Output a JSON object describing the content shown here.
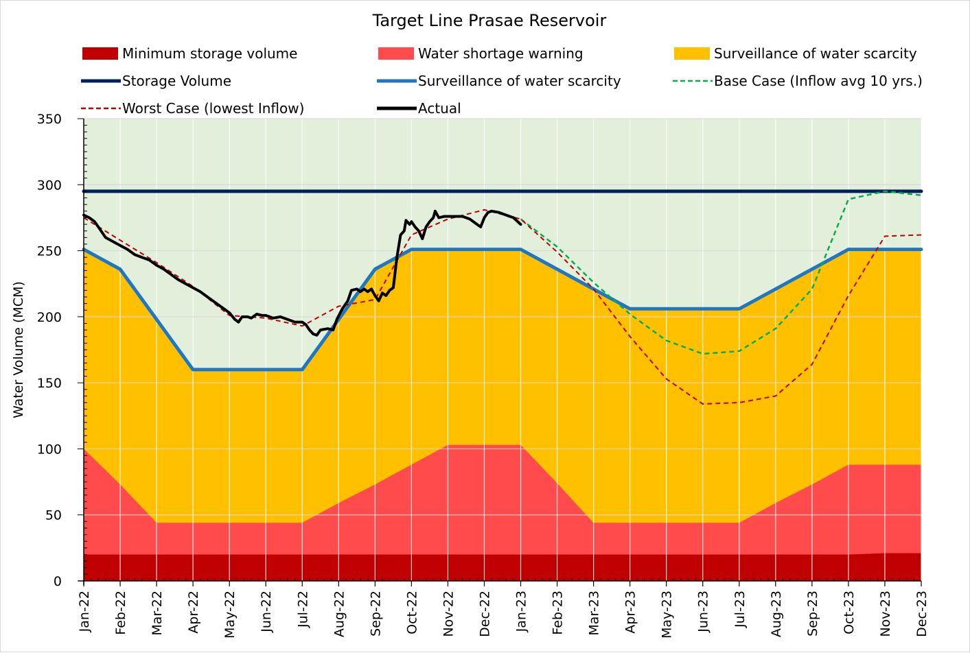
{
  "chart_data": {
    "type": "area",
    "title": "Target Line Prasae Reservoir",
    "xlabel": "",
    "ylabel": "Water Volume (MCM)",
    "ylim": [
      0,
      350
    ],
    "yticks": [
      0,
      50,
      100,
      150,
      200,
      250,
      300,
      350
    ],
    "categories": [
      "Jan-22",
      "Feb-22",
      "Mar-22",
      "Apr-22",
      "May-22",
      "Jun-22",
      "Jul-22",
      "Aug-22",
      "Sep-22",
      "Oct-22",
      "Nov-22",
      "Dec-22",
      "Jan-23",
      "Feb-23",
      "Mar-23",
      "Apr-23",
      "May-23",
      "Jun-23",
      "Jul-23",
      "Aug-23",
      "Sep-23",
      "Oct-23",
      "Nov-23",
      "Dec-23"
    ],
    "background_color": "#e2efda",
    "grid": true,
    "legend_position": "top",
    "areas": [
      {
        "name": "Surveillance of water scarcity",
        "color": "#ffc000",
        "values": [
          251,
          236,
          198,
          160,
          160,
          160,
          160,
          198,
          236,
          251,
          251,
          251,
          251,
          236,
          221,
          206,
          206,
          206,
          206,
          221,
          236,
          251,
          251,
          251
        ]
      },
      {
        "name": "Water shortage warning",
        "color": "#ff4b4b",
        "values": [
          100,
          73,
          44,
          44,
          44,
          44,
          44,
          59,
          73,
          88,
          103,
          103,
          103,
          74,
          44,
          44,
          44,
          44,
          44,
          59,
          73,
          88,
          88,
          88
        ]
      },
      {
        "name": "Minimum storage volume",
        "color": "#c00000",
        "values": [
          20,
          20,
          20,
          20,
          20,
          20,
          20,
          20,
          20,
          20,
          20,
          20,
          20,
          20,
          20,
          20,
          20,
          20,
          20,
          20,
          20,
          20,
          21,
          21
        ]
      }
    ],
    "lines": [
      {
        "name": "Storage Volume",
        "color": "#002060",
        "style": "solid",
        "width": 5,
        "points": [
          [
            0,
            295
          ],
          [
            23,
            295
          ]
        ]
      },
      {
        "name": "Surveillance of water scarcity",
        "color": "#1f77c4",
        "style": "solid",
        "width": 5,
        "points": [
          [
            0,
            251
          ],
          [
            1,
            236
          ],
          [
            2,
            198
          ],
          [
            3,
            160
          ],
          [
            4,
            160
          ],
          [
            5,
            160
          ],
          [
            6,
            160
          ],
          [
            7,
            198
          ],
          [
            8,
            236
          ],
          [
            9,
            251
          ],
          [
            10,
            251
          ],
          [
            11,
            251
          ],
          [
            12,
            251
          ],
          [
            13,
            236
          ],
          [
            14,
            221
          ],
          [
            15,
            206
          ],
          [
            16,
            206
          ],
          [
            17,
            206
          ],
          [
            18,
            206
          ],
          [
            19,
            221
          ],
          [
            20,
            236
          ],
          [
            21,
            251
          ],
          [
            22,
            251
          ],
          [
            23,
            251
          ]
        ]
      },
      {
        "name": "Base Case (Inflow avg 10 yrs.)",
        "color": "#00b050",
        "style": "dashed",
        "width": 2.5,
        "points": [
          [
            12,
            274
          ],
          [
            13,
            253
          ],
          [
            14,
            226
          ],
          [
            15,
            202
          ],
          [
            16,
            182
          ],
          [
            17,
            172
          ],
          [
            18,
            174
          ],
          [
            19,
            191
          ],
          [
            20,
            221
          ],
          [
            21,
            289
          ],
          [
            22,
            295
          ],
          [
            23,
            292
          ]
        ]
      },
      {
        "name": "Worst Case (lowest Inflow)",
        "color": "#c00000",
        "style": "dashed",
        "width": 2,
        "points": [
          [
            0,
            275
          ],
          [
            1,
            258
          ],
          [
            2,
            241
          ],
          [
            3,
            223
          ],
          [
            4,
            201
          ],
          [
            5,
            199
          ],
          [
            6,
            193
          ],
          [
            7,
            208
          ],
          [
            8,
            213
          ],
          [
            9,
            262
          ],
          [
            10,
            274
          ],
          [
            11,
            281
          ],
          [
            12,
            274
          ],
          [
            13,
            249
          ],
          [
            14,
            221
          ],
          [
            15,
            185
          ],
          [
            16,
            153
          ],
          [
            17,
            134
          ],
          [
            18,
            135
          ],
          [
            19,
            140
          ],
          [
            20,
            164
          ],
          [
            21,
            216
          ],
          [
            22,
            261
          ],
          [
            23,
            262
          ]
        ]
      },
      {
        "name": "Actual",
        "color": "#000000",
        "style": "solid",
        "width": 4,
        "points": [
          [
            0,
            277
          ],
          [
            0.15,
            275
          ],
          [
            0.3,
            272
          ],
          [
            0.45,
            266
          ],
          [
            0.6,
            260
          ],
          [
            0.8,
            257
          ],
          [
            1,
            254
          ],
          [
            1.2,
            251
          ],
          [
            1.4,
            247
          ],
          [
            1.6,
            245
          ],
          [
            1.8,
            243
          ],
          [
            2,
            239
          ],
          [
            2.2,
            236
          ],
          [
            2.4,
            232
          ],
          [
            2.6,
            228
          ],
          [
            2.8,
            225
          ],
          [
            3,
            222
          ],
          [
            3.2,
            219
          ],
          [
            3.4,
            215
          ],
          [
            3.6,
            211
          ],
          [
            3.8,
            207
          ],
          [
            4,
            203
          ],
          [
            4.15,
            198
          ],
          [
            4.25,
            196
          ],
          [
            4.35,
            200
          ],
          [
            4.5,
            200
          ],
          [
            4.6,
            199
          ],
          [
            4.75,
            202
          ],
          [
            4.9,
            201
          ],
          [
            5,
            201
          ],
          [
            5.2,
            199
          ],
          [
            5.4,
            200
          ],
          [
            5.6,
            198
          ],
          [
            5.8,
            196
          ],
          [
            6,
            196
          ],
          [
            6.1,
            194
          ],
          [
            6.2,
            190
          ],
          [
            6.3,
            187
          ],
          [
            6.4,
            186
          ],
          [
            6.5,
            190
          ],
          [
            6.7,
            191
          ],
          [
            6.85,
            190
          ],
          [
            6.95,
            198
          ],
          [
            7.1,
            206
          ],
          [
            7.25,
            212
          ],
          [
            7.35,
            220
          ],
          [
            7.5,
            221
          ],
          [
            7.6,
            219
          ],
          [
            7.7,
            221
          ],
          [
            7.8,
            219
          ],
          [
            7.9,
            221
          ],
          [
            8,
            216
          ],
          [
            8.1,
            212
          ],
          [
            8.2,
            218
          ],
          [
            8.3,
            216
          ],
          [
            8.4,
            220
          ],
          [
            8.5,
            222
          ],
          [
            8.6,
            245
          ],
          [
            8.7,
            262
          ],
          [
            8.8,
            265
          ],
          [
            8.85,
            273
          ],
          [
            8.95,
            270
          ],
          [
            9,
            272
          ],
          [
            9.1,
            268
          ],
          [
            9.2,
            265
          ],
          [
            9.3,
            259
          ],
          [
            9.4,
            268
          ],
          [
            9.5,
            272
          ],
          [
            9.6,
            275
          ],
          [
            9.65,
            280
          ],
          [
            9.75,
            275
          ],
          [
            9.9,
            276
          ],
          [
            10,
            276
          ],
          [
            10.2,
            276
          ],
          [
            10.4,
            276
          ],
          [
            10.6,
            274
          ],
          [
            10.8,
            270
          ],
          [
            10.9,
            268
          ],
          [
            11,
            275
          ],
          [
            11.1,
            279
          ],
          [
            11.2,
            280
          ],
          [
            11.4,
            279
          ],
          [
            11.6,
            277
          ],
          [
            11.8,
            275
          ],
          [
            12,
            270
          ]
        ]
      }
    ],
    "legend": [
      {
        "label": "Minimum storage volume",
        "kind": "area",
        "color": "#c00000"
      },
      {
        "label": "Water shortage warning",
        "kind": "area",
        "color": "#ff4b4b"
      },
      {
        "label": "Surveillance of water scarcity",
        "kind": "area",
        "color": "#ffc000"
      },
      {
        "label": "Storage Volume",
        "kind": "line",
        "color": "#002060"
      },
      {
        "label": "Surveillance of water scarcity",
        "kind": "line",
        "color": "#1f77c4"
      },
      {
        "label": "Base Case (Inflow avg 10 yrs.)",
        "kind": "dashed",
        "color": "#00b050"
      },
      {
        "label": "Worst Case (lowest Inflow)",
        "kind": "dashed",
        "color": "#c00000"
      },
      {
        "label": "Actual",
        "kind": "line",
        "color": "#000000"
      }
    ]
  }
}
